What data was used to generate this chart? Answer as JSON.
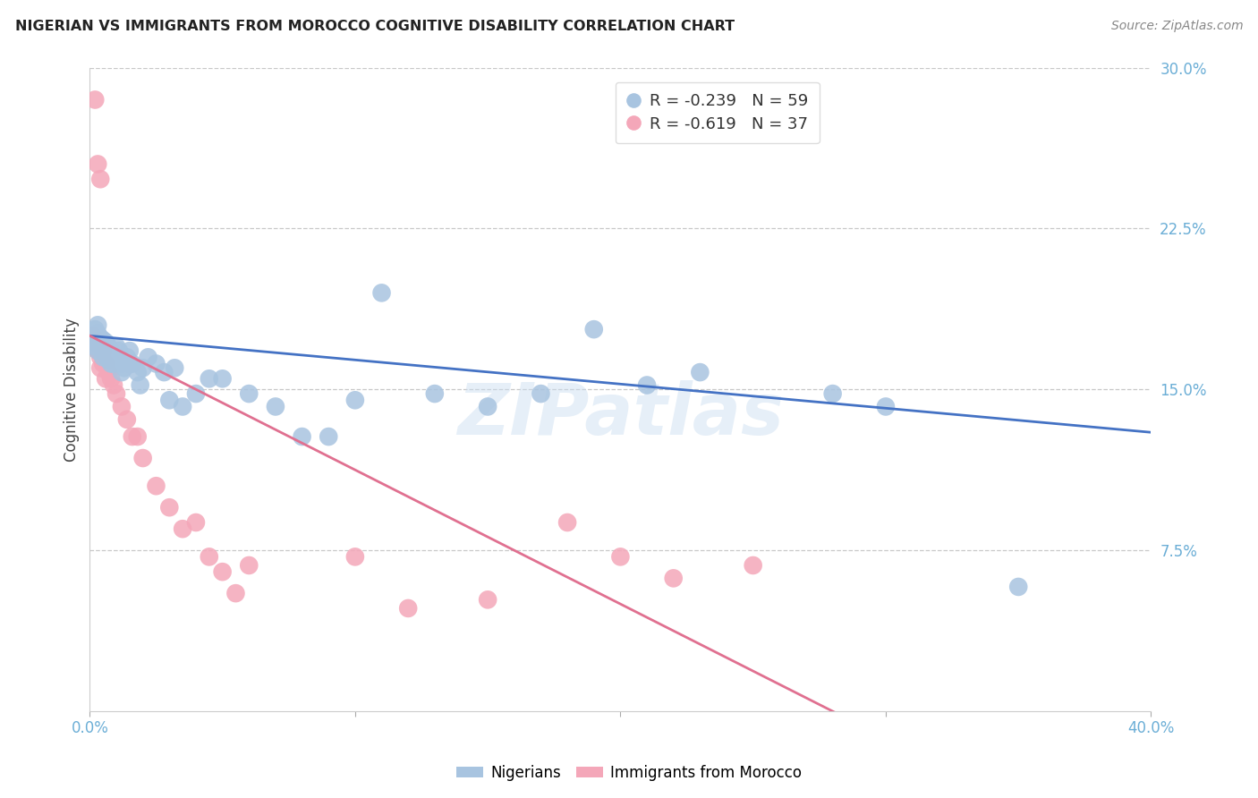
{
  "title": "NIGERIAN VS IMMIGRANTS FROM MOROCCO COGNITIVE DISABILITY CORRELATION CHART",
  "source": "Source: ZipAtlas.com",
  "ylabel": "Cognitive Disability",
  "xlim": [
    0.0,
    0.4
  ],
  "ylim": [
    0.0,
    0.3
  ],
  "blue_R": -0.239,
  "blue_N": 59,
  "pink_R": -0.619,
  "pink_N": 37,
  "blue_color": "#a8c4e0",
  "pink_color": "#f4a7b9",
  "blue_line_color": "#4472c4",
  "pink_line_color": "#e07090",
  "tick_color": "#6baed6",
  "grid_color": "#c8c8c8",
  "watermark": "ZIPatlas",
  "legend_label_blue": "Nigerians",
  "legend_label_pink": "Immigrants from Morocco",
  "blue_x": [
    0.001,
    0.002,
    0.002,
    0.003,
    0.003,
    0.003,
    0.004,
    0.004,
    0.005,
    0.005,
    0.006,
    0.006,
    0.007,
    0.007,
    0.008,
    0.008,
    0.009,
    0.01,
    0.01,
    0.011,
    0.012,
    0.013,
    0.014,
    0.015,
    0.016,
    0.018,
    0.02,
    0.022,
    0.025,
    0.028,
    0.03,
    0.032,
    0.035,
    0.04,
    0.045,
    0.05,
    0.06,
    0.07,
    0.08,
    0.09,
    0.1,
    0.11,
    0.13,
    0.15,
    0.17,
    0.19,
    0.21,
    0.23,
    0.28,
    0.3,
    0.002,
    0.003,
    0.005,
    0.007,
    0.009,
    0.012,
    0.015,
    0.019,
    0.35
  ],
  "blue_y": [
    0.175,
    0.178,
    0.172,
    0.18,
    0.176,
    0.168,
    0.174,
    0.17,
    0.173,
    0.165,
    0.172,
    0.168,
    0.17,
    0.164,
    0.168,
    0.162,
    0.166,
    0.17,
    0.163,
    0.168,
    0.162,
    0.16,
    0.165,
    0.168,
    0.162,
    0.158,
    0.16,
    0.165,
    0.162,
    0.158,
    0.145,
    0.16,
    0.142,
    0.148,
    0.155,
    0.155,
    0.148,
    0.142,
    0.128,
    0.128,
    0.145,
    0.195,
    0.148,
    0.142,
    0.148,
    0.178,
    0.152,
    0.158,
    0.148,
    0.142,
    0.17,
    0.174,
    0.168,
    0.164,
    0.162,
    0.158,
    0.162,
    0.152,
    0.058
  ],
  "pink_x": [
    0.001,
    0.002,
    0.002,
    0.003,
    0.003,
    0.004,
    0.004,
    0.005,
    0.005,
    0.006,
    0.007,
    0.008,
    0.009,
    0.01,
    0.012,
    0.014,
    0.016,
    0.018,
    0.02,
    0.025,
    0.03,
    0.035,
    0.04,
    0.045,
    0.05,
    0.055,
    0.06,
    0.1,
    0.12,
    0.15,
    0.003,
    0.004,
    0.006,
    0.25,
    0.2,
    0.18,
    0.22
  ],
  "pink_y": [
    0.175,
    0.17,
    0.285,
    0.168,
    0.255,
    0.165,
    0.248,
    0.162,
    0.168,
    0.162,
    0.158,
    0.155,
    0.152,
    0.148,
    0.142,
    0.136,
    0.128,
    0.128,
    0.118,
    0.105,
    0.095,
    0.085,
    0.088,
    0.072,
    0.065,
    0.055,
    0.068,
    0.072,
    0.048,
    0.052,
    0.172,
    0.16,
    0.155,
    0.068,
    0.072,
    0.088,
    0.062
  ]
}
